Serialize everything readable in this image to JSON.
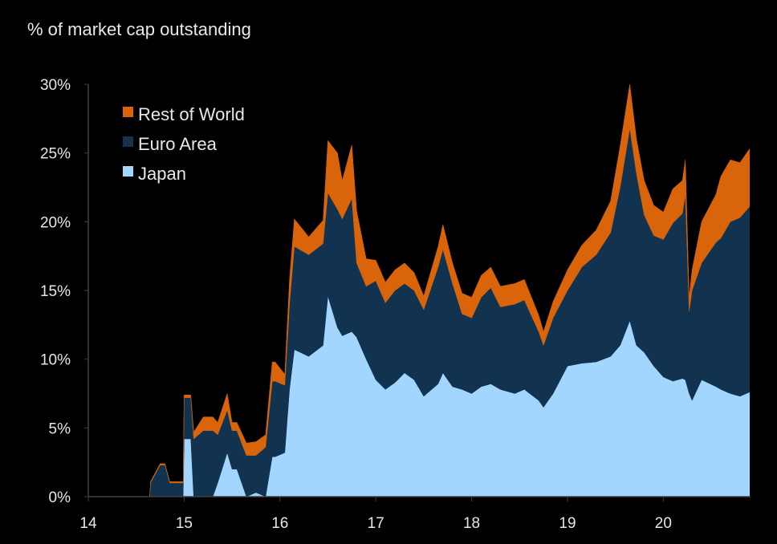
{
  "chart_data": {
    "type": "area",
    "stacked": true,
    "title": "% of market cap outstanding",
    "xlabel": "",
    "ylabel": "",
    "xlim": [
      14,
      20.91
    ],
    "ylim": [
      0,
      30
    ],
    "x_ticks": [
      14,
      15,
      16,
      17,
      18,
      19,
      20
    ],
    "x_tick_labels": [
      "14",
      "15",
      "16",
      "17",
      "18",
      "19",
      "20"
    ],
    "y_ticks": [
      0,
      5,
      10,
      15,
      20,
      25,
      30
    ],
    "y_tick_labels": [
      "0%",
      "5%",
      "10%",
      "15%",
      "20%",
      "25%",
      "30%"
    ],
    "grid": false,
    "legend_position": "top-left",
    "x": [
      14.64,
      14.65,
      14.75,
      14.8,
      14.85,
      14.99,
      15.0,
      15.07,
      15.1,
      15.2,
      15.3,
      15.35,
      15.45,
      15.5,
      15.55,
      15.65,
      15.75,
      15.85,
      15.92,
      15.95,
      16.05,
      16.1,
      16.15,
      16.3,
      16.45,
      16.5,
      16.6,
      16.65,
      16.75,
      16.8,
      16.9,
      17.0,
      17.1,
      17.2,
      17.3,
      17.4,
      17.5,
      17.65,
      17.7,
      17.8,
      17.9,
      18.0,
      18.1,
      18.2,
      18.3,
      18.45,
      18.55,
      18.7,
      18.75,
      18.85,
      19.0,
      19.15,
      19.3,
      19.45,
      19.55,
      19.65,
      19.72,
      19.8,
      19.9,
      20.0,
      20.1,
      20.2,
      20.23,
      20.27,
      20.3,
      20.4,
      20.55,
      20.6,
      20.7,
      20.8,
      20.9
    ],
    "series": [
      {
        "name": "Japan",
        "color": "#a3d6ff",
        "values": [
          0,
          0,
          0,
          0,
          0,
          0,
          4.2,
          4.2,
          0,
          0,
          0,
          1.0,
          3.2,
          2.0,
          2.0,
          0,
          0.3,
          0,
          2.9,
          2.9,
          3.2,
          7.8,
          10.7,
          10.2,
          11.0,
          14.6,
          12.3,
          11.7,
          12.0,
          11.6,
          10.0,
          8.5,
          7.8,
          8.3,
          9.0,
          8.5,
          7.3,
          8.2,
          9.0,
          8.0,
          7.8,
          7.5,
          8.0,
          8.2,
          7.8,
          7.5,
          7.8,
          7.0,
          6.5,
          7.5,
          9.5,
          9.7,
          9.8,
          10.2,
          11.0,
          12.8,
          11.0,
          10.5,
          9.5,
          8.7,
          8.4,
          8.6,
          8.5,
          7.5,
          7.0,
          8.5,
          8.0,
          7.8,
          7.5,
          7.3,
          7.6
        ]
      },
      {
        "name": "Euro Area",
        "color": "#12334f",
        "values": [
          0,
          1.0,
          2.3,
          2.3,
          1.0,
          1.0,
          3.0,
          3.0,
          4.2,
          4.8,
          4.8,
          3.5,
          3.1,
          2.8,
          2.8,
          3.0,
          2.7,
          3.6,
          5.5,
          5.5,
          4.9,
          6.2,
          7.5,
          7.4,
          7.4,
          7.5,
          8.6,
          8.5,
          9.7,
          5.4,
          5.3,
          7.2,
          6.3,
          6.7,
          6.5,
          6.5,
          6.3,
          8.5,
          9.0,
          7.5,
          5.5,
          5.5,
          6.5,
          7.0,
          6.0,
          6.5,
          6.5,
          5.0,
          4.5,
          5.5,
          5.5,
          7.0,
          7.8,
          9.0,
          11.5,
          14.0,
          12.5,
          10.0,
          9.5,
          10.0,
          11.5,
          12.0,
          13.5,
          6.0,
          8.0,
          8.5,
          10.5,
          11.0,
          12.5,
          13.0,
          13.5
        ]
      },
      {
        "name": "Rest of World",
        "color": "#d9640a",
        "values": [
          0,
          0.1,
          0.1,
          0.1,
          0.1,
          0.1,
          0.2,
          0.2,
          0.5,
          1.0,
          1.0,
          0.9,
          1.2,
          0.6,
          0.6,
          0.9,
          1.0,
          0.9,
          1.4,
          1.4,
          0.8,
          1.8,
          2.0,
          1.3,
          1.7,
          3.8,
          4.1,
          2.8,
          3.9,
          3.8,
          2.0,
          1.5,
          1.5,
          1.5,
          1.5,
          1.3,
          1.0,
          1.5,
          1.8,
          1.5,
          1.5,
          1.5,
          1.6,
          1.5,
          1.5,
          1.5,
          1.5,
          1.2,
          1.0,
          1.2,
          1.5,
          1.6,
          1.8,
          2.3,
          3.0,
          3.2,
          2.5,
          2.5,
          2.2,
          2.0,
          2.5,
          2.4,
          2.5,
          1.0,
          1.5,
          3.0,
          3.5,
          4.5,
          4.5,
          4.0,
          4.2
        ]
      }
    ],
    "legend": [
      "Rest of World",
      "Euro Area",
      "Japan"
    ],
    "axis_color": "#404040"
  }
}
